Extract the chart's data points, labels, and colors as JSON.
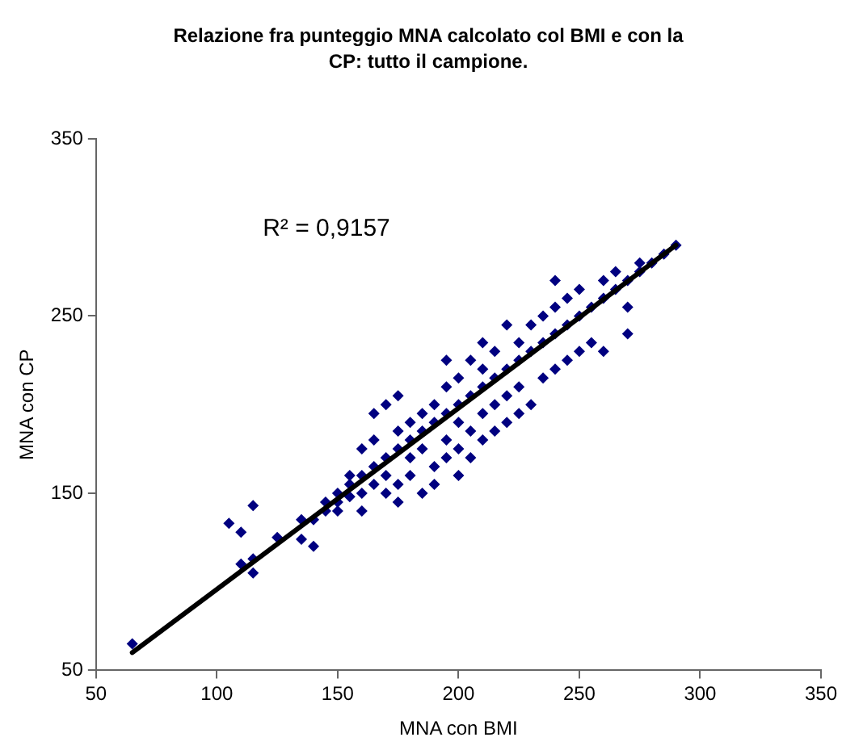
{
  "chart_data": {
    "type": "scatter",
    "title": "Relazione fra punteggio MNA calcolato col BMI e con la CP: tutto il campione.",
    "xlabel": "MNA con BMI",
    "ylabel": "MNA con CP",
    "xlim": [
      50,
      350
    ],
    "xticks": [
      50,
      100,
      150,
      200,
      250,
      300,
      350
    ],
    "ylim": [
      50,
      350
    ],
    "yticks": [
      50,
      150,
      250,
      350
    ],
    "grid": false,
    "legend": false,
    "marker": "diamond",
    "annotations": [
      "R² = 0,9157"
    ],
    "series": [
      {
        "color": "#000080",
        "x": [
          65,
          105,
          110,
          115,
          110,
          115,
          115,
          125,
          135,
          135,
          140,
          140,
          145,
          145,
          150,
          150,
          150,
          155,
          155,
          155,
          160,
          160,
          160,
          160,
          165,
          165,
          165,
          165,
          170,
          170,
          170,
          170,
          175,
          175,
          175,
          175,
          175,
          180,
          180,
          180,
          180,
          185,
          185,
          185,
          185,
          190,
          190,
          190,
          190,
          195,
          195,
          195,
          195,
          195,
          200,
          200,
          200,
          200,
          200,
          205,
          205,
          205,
          205,
          210,
          210,
          210,
          210,
          210,
          215,
          215,
          215,
          215,
          220,
          220,
          220,
          220,
          225,
          225,
          225,
          225,
          230,
          230,
          230,
          235,
          235,
          235,
          240,
          240,
          240,
          240,
          245,
          245,
          245,
          250,
          250,
          250,
          255,
          255,
          260,
          260,
          265,
          265,
          270,
          270,
          275,
          275,
          280,
          285,
          290,
          270,
          260
        ],
        "values": [
          65,
          133,
          128,
          143,
          110,
          105,
          113,
          125,
          135,
          124,
          120,
          135,
          145,
          140,
          150,
          145,
          140,
          155,
          148,
          160,
          150,
          160,
          140,
          175,
          165,
          195,
          155,
          180,
          170,
          200,
          160,
          150,
          175,
          185,
          145,
          205,
          155,
          180,
          170,
          160,
          190,
          185,
          150,
          175,
          195,
          190,
          165,
          155,
          200,
          195,
          225,
          180,
          170,
          210,
          200,
          190,
          175,
          160,
          215,
          205,
          225,
          185,
          170,
          210,
          235,
          195,
          180,
          220,
          215,
          200,
          185,
          230,
          220,
          245,
          205,
          190,
          225,
          235,
          210,
          195,
          230,
          245,
          200,
          235,
          215,
          250,
          240,
          270,
          220,
          255,
          245,
          225,
          260,
          250,
          230,
          265,
          255,
          235,
          260,
          270,
          265,
          275,
          270,
          240,
          275,
          280,
          280,
          285,
          290,
          255,
          230
        ]
      },
      {
        "type": "line",
        "color": "#000000",
        "marker": "none",
        "x": [
          65,
          290
        ],
        "values": [
          60,
          290
        ]
      }
    ]
  }
}
